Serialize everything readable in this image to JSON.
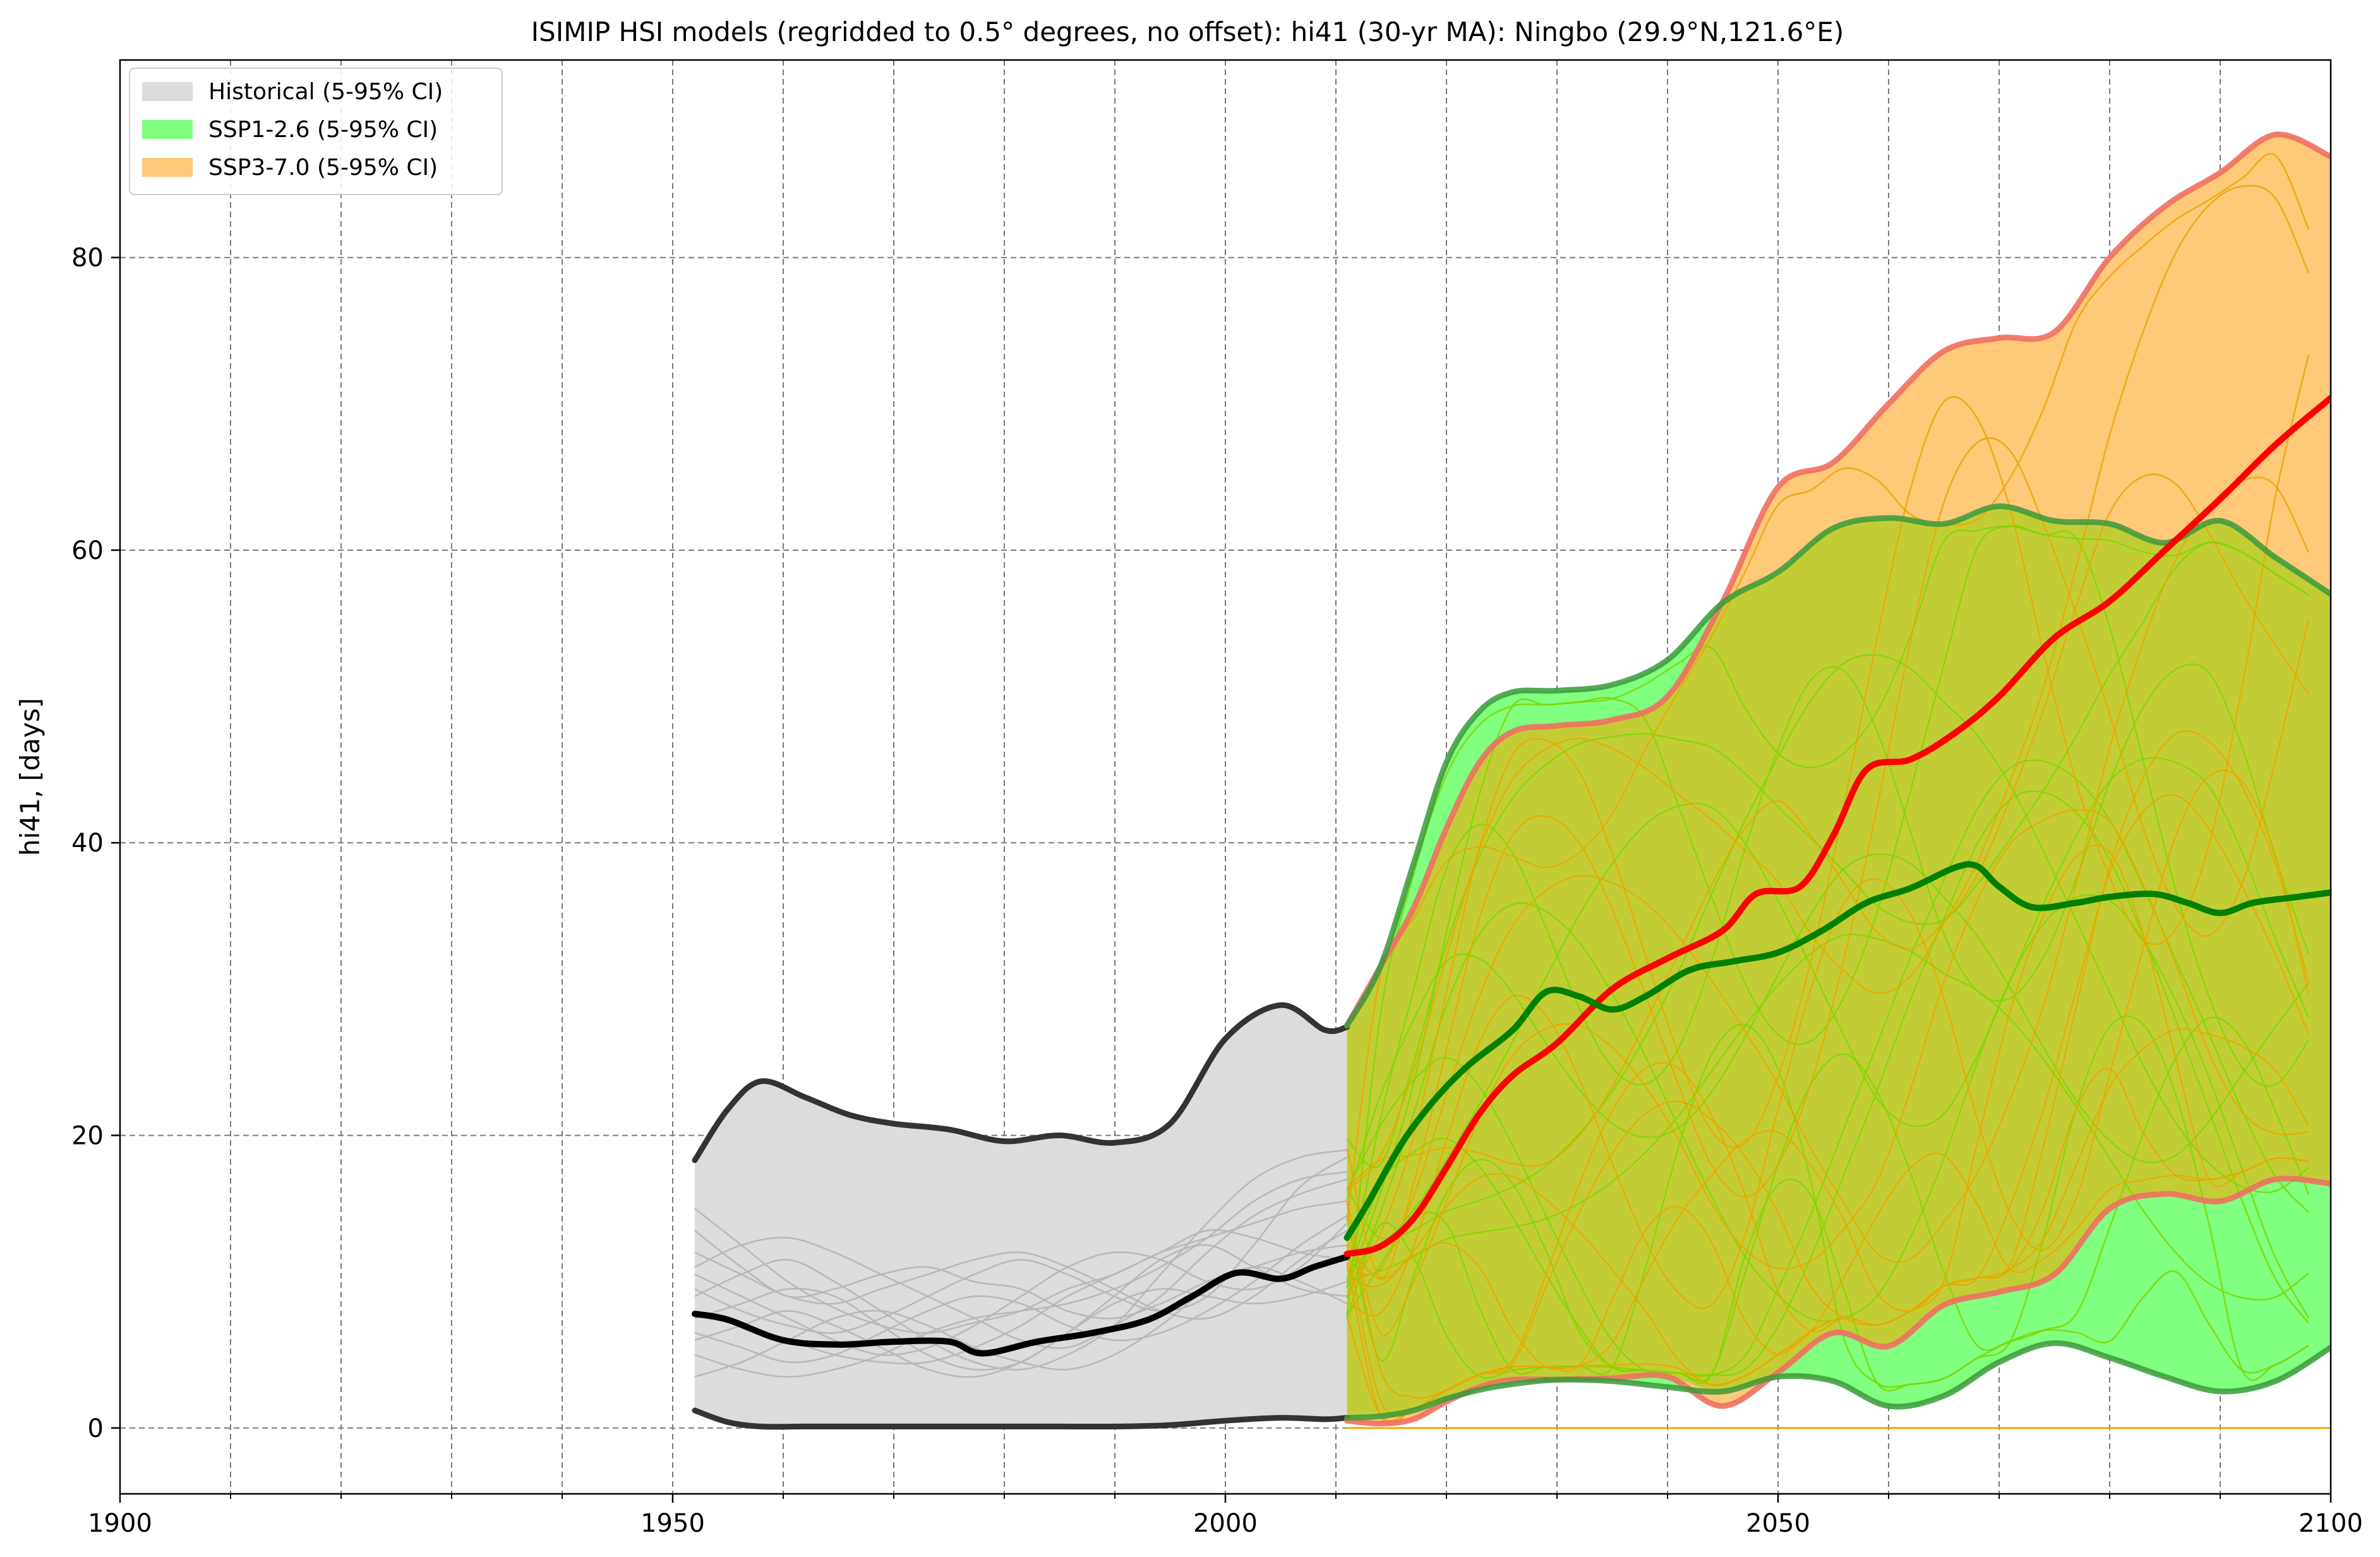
{
  "chart_data": {
    "type": "line",
    "title": "ISIMIP HSI models (regridded to 0.5° degrees, no offset): hi41 (30-yr MA): Ningbo (29.9°N,121.6°E)",
    "xlabel": "",
    "ylabel": "hi41, [days]",
    "xlim": [
      1900,
      2100
    ],
    "ylim": [
      -4.5,
      93.5
    ],
    "x_ticks": [
      1900,
      1950,
      2000,
      2050,
      2100
    ],
    "x_tick_labels": [
      "1900",
      "1950",
      "2000",
      "2050",
      "2100"
    ],
    "x_minor_gridlines": [
      1910,
      1920,
      1930,
      1940,
      1960,
      1970,
      1980,
      1990,
      2010,
      2020,
      2030,
      2040,
      2060,
      2070,
      2080,
      2090
    ],
    "y_ticks": [
      0,
      20,
      40,
      60,
      80
    ],
    "y_tick_labels": [
      "0",
      "20",
      "40",
      "60",
      "80"
    ],
    "grid": true,
    "legend_position": "top-left",
    "legend": [
      {
        "label": "Historical (5-95% CI)",
        "color": "#dcdcdc"
      },
      {
        "label": "SSP1-2.6 (5-95% CI)",
        "color": "#80ff80"
      },
      {
        "label": "SSP3-7.0 (5-95% CI)",
        "color": "#ffc97a"
      }
    ],
    "colors": {
      "historical_fill": "#dcdcdc",
      "historical_bound": "#333333",
      "historical_median": "#000000",
      "historical_models": "#b8b8b8",
      "ssp126_fill": "#80ff80",
      "ssp126_bound": "#3a9a3a",
      "ssp126_median": "#008000",
      "ssp126_models": "#7fd600",
      "ssp370_fill": "#ffc97a",
      "ssp370_bound": "#f07060",
      "ssp370_median": "#ff0000",
      "ssp370_models": "#e8a800",
      "overlap_fill": "#c2cd36"
    },
    "series": [
      {
        "name": "Historical (5-95% CI)",
        "role": "band",
        "x": [
          1952,
          1955,
          1958,
          1962,
          1966,
          1970,
          1975,
          1980,
          1985,
          1990,
          1995,
          2000,
          2005,
          2009,
          2011
        ],
        "upper": [
          18.3,
          21.8,
          23.7,
          22.6,
          21.4,
          20.8,
          20.4,
          19.6,
          20.0,
          19.5,
          20.8,
          26.6,
          28.9,
          27.2,
          27.4
        ],
        "lower": [
          1.2,
          0.4,
          0.1,
          0.1,
          0.1,
          0.1,
          0.1,
          0.1,
          0.1,
          0.1,
          0.2,
          0.5,
          0.7,
          0.6,
          0.7
        ]
      },
      {
        "name": "Historical median",
        "role": "median",
        "x": [
          1952,
          1955,
          1960,
          1965,
          1970,
          1975,
          1978,
          1983,
          1988,
          1993,
          1997,
          2001,
          2005,
          2008,
          2011
        ],
        "values": [
          7.8,
          7.4,
          6.0,
          5.7,
          5.9,
          5.9,
          5.1,
          5.9,
          6.5,
          7.4,
          9.0,
          10.6,
          10.2,
          11.0,
          11.7
        ]
      },
      {
        "name": "SSP1-2.6 (5-95% CI)",
        "role": "band",
        "x": [
          2011,
          2014,
          2017,
          2020,
          2023,
          2026,
          2030,
          2035,
          2040,
          2045,
          2050,
          2055,
          2060,
          2065,
          2070,
          2075,
          2080,
          2085,
          2090,
          2095,
          2100
        ],
        "upper": [
          27.5,
          31.5,
          38.5,
          45.5,
          49.0,
          50.3,
          50.4,
          50.8,
          52.5,
          56.4,
          58.5,
          61.5,
          62.2,
          61.8,
          63.0,
          62.0,
          61.8,
          60.5,
          62.0,
          59.5,
          57.0
        ],
        "lower": [
          0.7,
          0.8,
          1.2,
          2.0,
          2.6,
          3.0,
          3.3,
          3.2,
          2.8,
          2.5,
          3.5,
          3.2,
          1.5,
          2.2,
          4.5,
          5.8,
          4.8,
          3.5,
          2.5,
          3.2,
          5.5
        ]
      },
      {
        "name": "SSP1-2.6 median",
        "role": "median",
        "x": [
          2011,
          2013,
          2016,
          2019,
          2022,
          2026,
          2029,
          2032,
          2035,
          2038,
          2042,
          2046,
          2050,
          2054,
          2058,
          2062,
          2066,
          2068,
          2070,
          2073,
          2077,
          2080,
          2084,
          2087,
          2090,
          2093,
          2097,
          2100
        ],
        "values": [
          13.0,
          15.5,
          19.5,
          22.5,
          24.8,
          27.2,
          29.8,
          29.5,
          28.6,
          29.5,
          31.3,
          31.9,
          32.5,
          34.0,
          35.9,
          36.9,
          38.3,
          38.4,
          37.0,
          35.6,
          35.9,
          36.3,
          36.5,
          35.9,
          35.2,
          35.9,
          36.3,
          36.6
        ]
      },
      {
        "name": "SSP3-7.0 (5-95% CI)",
        "role": "band",
        "x": [
          2011,
          2014,
          2017,
          2020,
          2023,
          2026,
          2030,
          2035,
          2040,
          2045,
          2050,
          2055,
          2060,
          2065,
          2070,
          2075,
          2080,
          2085,
          2090,
          2095,
          2100
        ],
        "upper": [
          27.5,
          31.5,
          35.5,
          41.0,
          45.5,
          47.6,
          48.0,
          48.4,
          50.0,
          56.5,
          64.3,
          66.0,
          70.0,
          73.6,
          74.5,
          74.9,
          80.0,
          83.5,
          85.8,
          88.4,
          86.9
        ],
        "lower": [
          0.5,
          0.3,
          0.6,
          1.8,
          2.8,
          3.3,
          3.3,
          3.4,
          3.5,
          1.5,
          3.8,
          6.5,
          5.6,
          8.4,
          9.3,
          10.5,
          15.0,
          16.0,
          15.5,
          17.0,
          16.7
        ]
      },
      {
        "name": "SSP3-7.0 median",
        "role": "median",
        "x": [
          2011,
          2014,
          2017,
          2020,
          2023,
          2026,
          2030,
          2035,
          2040,
          2045,
          2048,
          2052,
          2055,
          2058,
          2062,
          2066,
          2070,
          2075,
          2080,
          2085,
          2090,
          2095,
          2100
        ],
        "values": [
          11.9,
          12.4,
          14.3,
          17.8,
          21.5,
          24.1,
          26.3,
          30.0,
          32.1,
          34.0,
          36.5,
          37.0,
          40.5,
          45.0,
          45.7,
          47.5,
          50.0,
          54.0,
          56.5,
          60.0,
          63.5,
          67.2,
          70.4
        ]
      }
    ],
    "historical_models": [
      [
        15.0,
        12.5,
        10.0,
        8.2,
        7.0,
        6.5,
        7.2,
        8.0,
        9.5,
        10.5,
        12.0,
        13.0,
        14.0,
        15.0,
        15.5
      ],
      [
        13.5,
        11.0,
        9.0,
        9.5,
        10.5,
        11.0,
        10.0,
        9.5,
        8.0,
        7.5,
        8.5,
        10.0,
        11.0,
        12.0,
        12.5
      ],
      [
        11.0,
        12.5,
        13.0,
        12.0,
        10.5,
        9.0,
        7.5,
        6.0,
        5.5,
        7.0,
        9.0,
        12.0,
        14.5,
        16.0,
        17.0
      ],
      [
        10.5,
        9.0,
        7.5,
        6.0,
        5.0,
        5.5,
        7.0,
        9.0,
        11.0,
        12.0,
        11.5,
        10.0,
        9.5,
        11.0,
        14.0
      ],
      [
        9.5,
        8.0,
        7.0,
        6.5,
        7.5,
        9.0,
        10.5,
        11.5,
        10.5,
        9.0,
        8.0,
        9.0,
        12.5,
        16.5,
        18.5
      ],
      [
        9.0,
        10.5,
        11.5,
        10.0,
        8.0,
        6.0,
        4.5,
        4.0,
        5.0,
        7.0,
        10.5,
        14.0,
        17.0,
        18.5,
        19.0
      ],
      [
        8.0,
        7.0,
        6.0,
        5.0,
        4.5,
        4.5,
        5.5,
        7.0,
        9.0,
        10.5,
        12.0,
        13.5,
        13.0,
        12.0,
        11.5
      ],
      [
        7.5,
        8.5,
        9.5,
        9.0,
        7.0,
        5.0,
        4.0,
        4.5,
        6.5,
        8.5,
        9.5,
        9.0,
        8.5,
        9.0,
        10.0
      ],
      [
        6.5,
        5.5,
        4.5,
        5.0,
        6.5,
        8.0,
        9.0,
        8.5,
        7.0,
        6.0,
        6.5,
        8.0,
        10.0,
        12.5,
        14.5
      ],
      [
        6.0,
        7.0,
        8.0,
        7.0,
        5.5,
        4.0,
        3.5,
        4.5,
        6.5,
        9.0,
        11.5,
        12.5,
        11.0,
        9.5,
        9.0
      ],
      [
        5.0,
        4.0,
        3.5,
        4.0,
        5.0,
        6.5,
        7.5,
        8.0,
        8.5,
        9.5,
        11.0,
        13.0,
        15.5,
        17.0,
        17.5
      ],
      [
        3.5,
        4.5,
        6.0,
        7.5,
        8.0,
        7.0,
        5.5,
        4.5,
        4.0,
        5.0,
        7.0,
        9.5,
        11.0,
        10.0,
        8.5
      ],
      [
        12.0,
        10.5,
        9.0,
        8.5,
        9.5,
        10.5,
        11.5,
        12.0,
        11.0,
        9.5,
        8.0,
        7.5,
        9.0,
        11.5,
        13.5
      ]
    ]
  }
}
